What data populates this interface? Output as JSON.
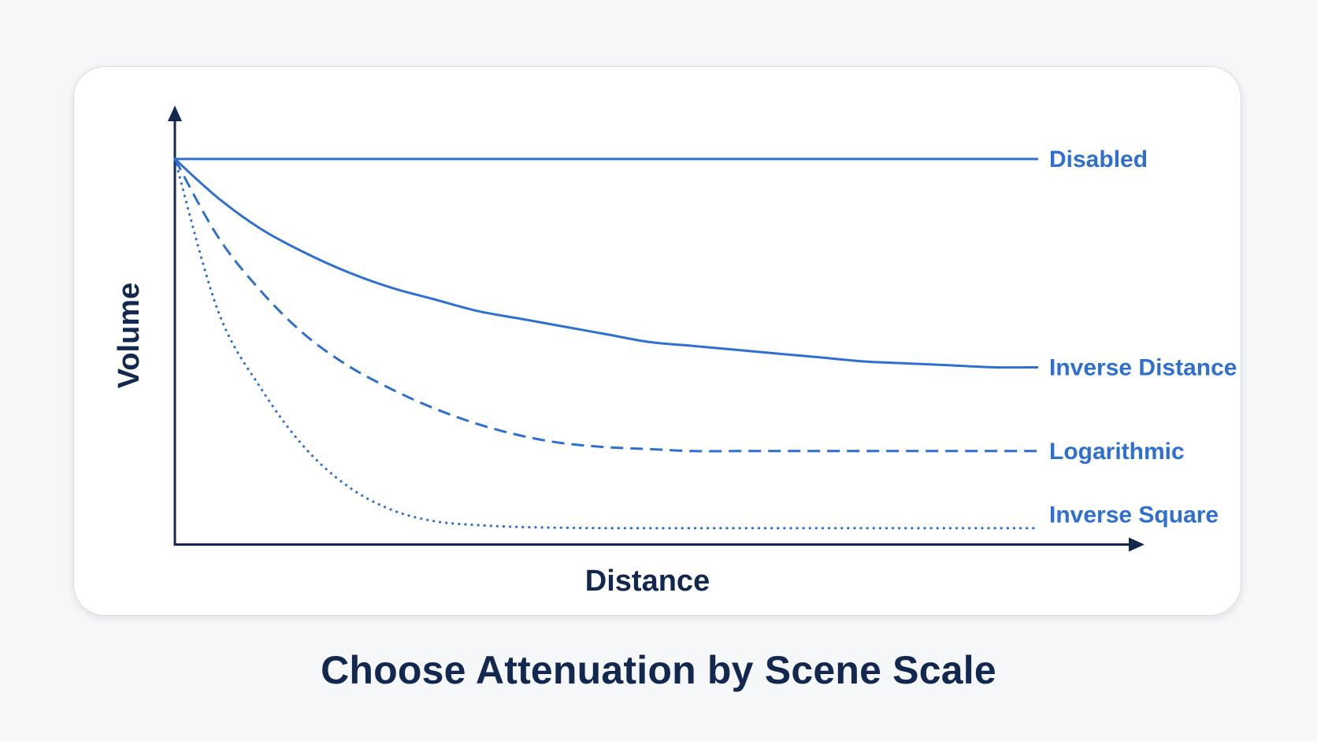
{
  "chart_data": {
    "type": "line",
    "title": "Choose Attenuation by Scene Scale",
    "xlabel": "Distance",
    "ylabel": "Volume",
    "xlim": [
      0,
      1
    ],
    "ylim": [
      0,
      1
    ],
    "ticks_shown": false,
    "grid": false,
    "legend": "inline labels at right end of each line",
    "x": [
      0,
      0.05,
      0.1,
      0.15,
      0.2,
      0.25,
      0.3,
      0.35,
      0.4,
      0.45,
      0.5,
      0.55,
      0.6,
      0.65,
      0.7,
      0.75,
      0.8,
      0.85,
      0.9,
      0.95,
      1.0
    ],
    "series": [
      {
        "name": "Disabled",
        "style": "solid",
        "values": [
          0.99,
          0.99,
          0.99,
          0.99,
          0.99,
          0.99,
          0.99,
          0.99,
          0.99,
          0.99,
          0.99,
          0.99,
          0.99,
          0.99,
          0.99,
          0.99,
          0.99,
          0.99,
          0.99,
          0.99,
          0.99
        ]
      },
      {
        "name": "Inverse Distance",
        "style": "solid",
        "values": [
          0.99,
          0.89,
          0.81,
          0.75,
          0.7,
          0.66,
          0.63,
          0.6,
          0.58,
          0.56,
          0.54,
          0.52,
          0.51,
          0.5,
          0.49,
          0.48,
          0.47,
          0.465,
          0.46,
          0.455,
          0.455
        ]
      },
      {
        "name": "Logarithmic",
        "style": "dashed",
        "values": [
          0.99,
          0.79,
          0.65,
          0.54,
          0.46,
          0.4,
          0.35,
          0.31,
          0.28,
          0.26,
          0.25,
          0.245,
          0.24,
          0.24,
          0.24,
          0.24,
          0.24,
          0.24,
          0.24,
          0.24,
          0.24
        ]
      },
      {
        "name": "Inverse Square",
        "style": "dotted",
        "values": [
          0.99,
          0.6,
          0.4,
          0.25,
          0.15,
          0.09,
          0.06,
          0.05,
          0.045,
          0.043,
          0.042,
          0.042,
          0.042,
          0.042,
          0.042,
          0.042,
          0.042,
          0.042,
          0.042,
          0.042,
          0.042
        ]
      }
    ]
  },
  "colors": {
    "series": "#2f6fd0",
    "axis": "#13284f",
    "label": "#2f6fd0",
    "text": "#13284f",
    "card_border": "#d9dde3",
    "background": "#f6f7f9"
  }
}
